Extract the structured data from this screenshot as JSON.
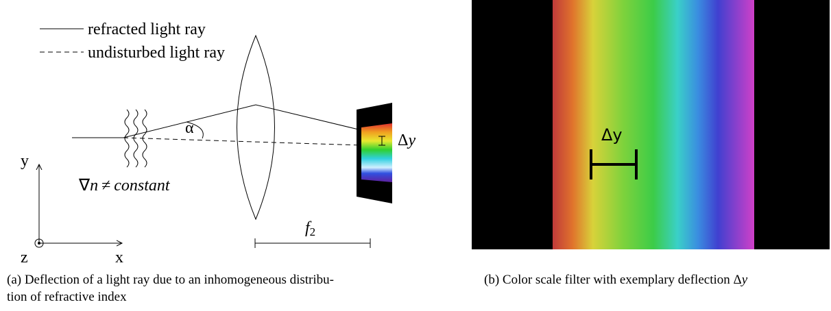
{
  "legend": {
    "solid": "refracted light ray",
    "dashed": "undisturbed light ray"
  },
  "left_panel": {
    "angle_label": "α",
    "deflection_label": {
      "delta": "Δ",
      "symbol": "y"
    },
    "gradient_label": {
      "nabla": "∇",
      "n": "n",
      "neq": "≠",
      "word": "constant"
    },
    "axes": {
      "y": "y",
      "z": "z",
      "x": "x"
    },
    "focal_label": {
      "symbol": "f",
      "subscript": "2"
    }
  },
  "right_panel": {
    "deflection_label": "Δy"
  },
  "captions": {
    "a": [
      "(a) Deflection of a light ray due to an inhomogeneous distribu-",
      "tion of refractive index"
    ],
    "b": {
      "text": "(b) Color scale filter with exemplary deflection Δ",
      "symbol": "y"
    }
  }
}
